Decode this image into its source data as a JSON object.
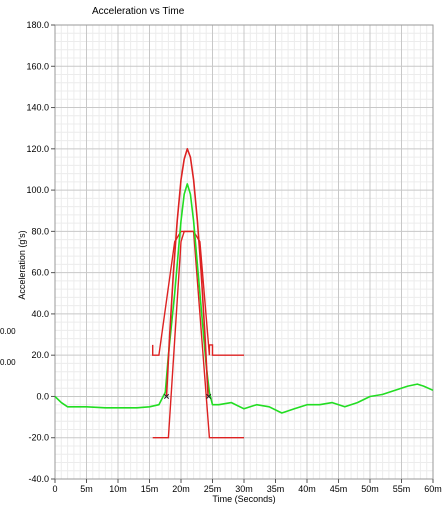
{
  "side_values": [
    "0.00",
    "0.00"
  ],
  "chart_data": {
    "type": "line",
    "title": "Acceleration vs Time",
    "xlabel": "Time (Seconds)",
    "ylabel": "Acceleration (g's)",
    "xlim": [
      0,
      0.06
    ],
    "ylim": [
      -40,
      180
    ],
    "x_ticks": [
      {
        "value": 0,
        "label": "0"
      },
      {
        "value": 0.005,
        "label": "5m"
      },
      {
        "value": 0.01,
        "label": "10m"
      },
      {
        "value": 0.015,
        "label": "15m"
      },
      {
        "value": 0.02,
        "label": "20m"
      },
      {
        "value": 0.025,
        "label": "25m"
      },
      {
        "value": 0.03,
        "label": "30m"
      },
      {
        "value": 0.035,
        "label": "35m"
      },
      {
        "value": 0.04,
        "label": "40m"
      },
      {
        "value": 0.045,
        "label": "45m"
      },
      {
        "value": 0.05,
        "label": "50m"
      },
      {
        "value": 0.055,
        "label": "55m"
      },
      {
        "value": 0.06,
        "label": "60m"
      }
    ],
    "y_ticks": [
      {
        "value": 180,
        "label": "180.0"
      },
      {
        "value": 160,
        "label": "160.0"
      },
      {
        "value": 140,
        "label": "140.0"
      },
      {
        "value": 120,
        "label": "120.0"
      },
      {
        "value": 100,
        "label": "100.0"
      },
      {
        "value": 80,
        "label": "80.0"
      },
      {
        "value": 60,
        "label": "60.0"
      },
      {
        "value": 40,
        "label": "40.0"
      },
      {
        "value": 20,
        "label": "20.0"
      },
      {
        "value": 0,
        "label": "0.0"
      },
      {
        "value": -20,
        "label": "-20.0"
      },
      {
        "value": -40,
        "label": "-40.0"
      }
    ],
    "grid": true,
    "minor_grid": true,
    "series": [
      {
        "color": "#22dd22",
        "x": [
          0,
          0.001,
          0.002,
          0.003,
          0.005,
          0.008,
          0.01,
          0.013,
          0.015,
          0.0165,
          0.0175,
          0.018,
          0.019,
          0.02,
          0.0205,
          0.021,
          0.0215,
          0.022,
          0.023,
          0.024,
          0.0245,
          0.025,
          0.026,
          0.028,
          0.03,
          0.032,
          0.034,
          0.036,
          0.038,
          0.04,
          0.042,
          0.044,
          0.046,
          0.048,
          0.05,
          0.052,
          0.054,
          0.056,
          0.0575,
          0.0585,
          0.06
        ],
        "values": [
          0,
          -3,
          -5,
          -5,
          -5,
          -5.5,
          -5.5,
          -5.5,
          -5,
          -4,
          2,
          20,
          50,
          85,
          98,
          103,
          98,
          85,
          50,
          15,
          2,
          -4,
          -4,
          -3,
          -6,
          -4,
          -5,
          -8,
          -6,
          -4,
          -4,
          -3,
          -5,
          -3,
          0,
          1,
          3,
          5,
          6,
          5,
          3
        ]
      },
      {
        "color": "#dd2222",
        "x": [
          0.0177,
          0.0182,
          0.0188,
          0.0194,
          0.02,
          0.0205,
          0.021,
          0.0215,
          0.022,
          0.0226,
          0.0232,
          0.0238,
          0.0243
        ],
        "values": [
          0,
          30,
          60,
          85,
          105,
          115,
          120,
          116,
          105,
          85,
          60,
          30,
          0
        ]
      }
    ],
    "limit_lines": [
      {
        "color": "#dd2222",
        "x": [
          0.0155,
          0.0155,
          0.0165,
          0.0165,
          0.019,
          0.02,
          0.0205,
          0.022,
          0.023,
          0.0245,
          0.0245,
          0.025,
          0.025,
          0.03
        ],
        "values": [
          25,
          20,
          20,
          20,
          75,
          80,
          80,
          80,
          75,
          20,
          25,
          25,
          20,
          20
        ]
      },
      {
        "color": "#dd2222",
        "x": [
          0.0155,
          0.018,
          0.02,
          0.0205,
          0.021,
          0.022,
          0.0245,
          0.03
        ],
        "values": [
          -20,
          -20,
          75,
          80,
          80,
          80,
          -20,
          -20
        ]
      }
    ],
    "markers": [
      {
        "x": 0.0177,
        "y": 0,
        "symbol": "x"
      },
      {
        "x": 0.0244,
        "y": 0,
        "symbol": "x"
      }
    ]
  }
}
